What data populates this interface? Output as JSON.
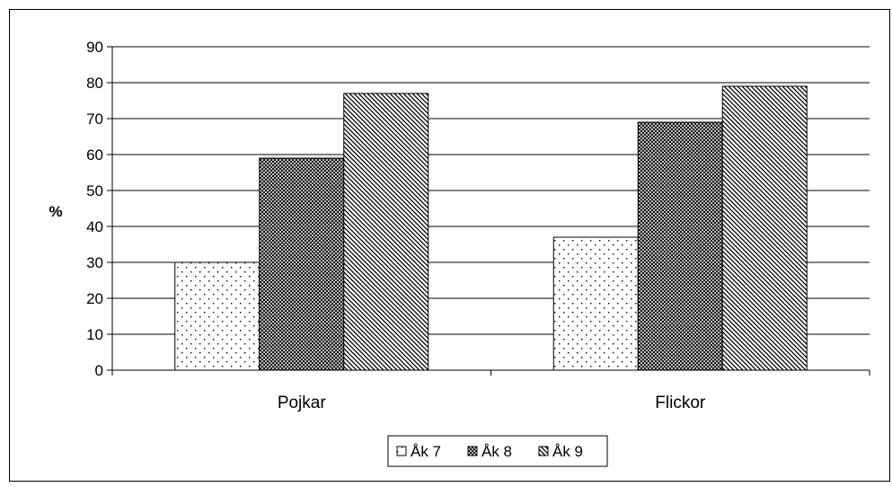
{
  "chart_data": {
    "type": "bar",
    "categories": [
      "Pojkar",
      "Flickor"
    ],
    "series": [
      {
        "name": "Åk 7",
        "values": [
          30,
          37
        ]
      },
      {
        "name": "Åk 8",
        "values": [
          59,
          69
        ]
      },
      {
        "name": "Åk 9",
        "values": [
          77,
          79
        ]
      }
    ],
    "ylabel": "%",
    "xlabel": "",
    "ylim": [
      0,
      90
    ],
    "yticks": [
      0,
      10,
      20,
      30,
      40,
      50,
      60,
      70,
      80,
      90
    ],
    "grid": true,
    "legend_position": "bottom"
  }
}
